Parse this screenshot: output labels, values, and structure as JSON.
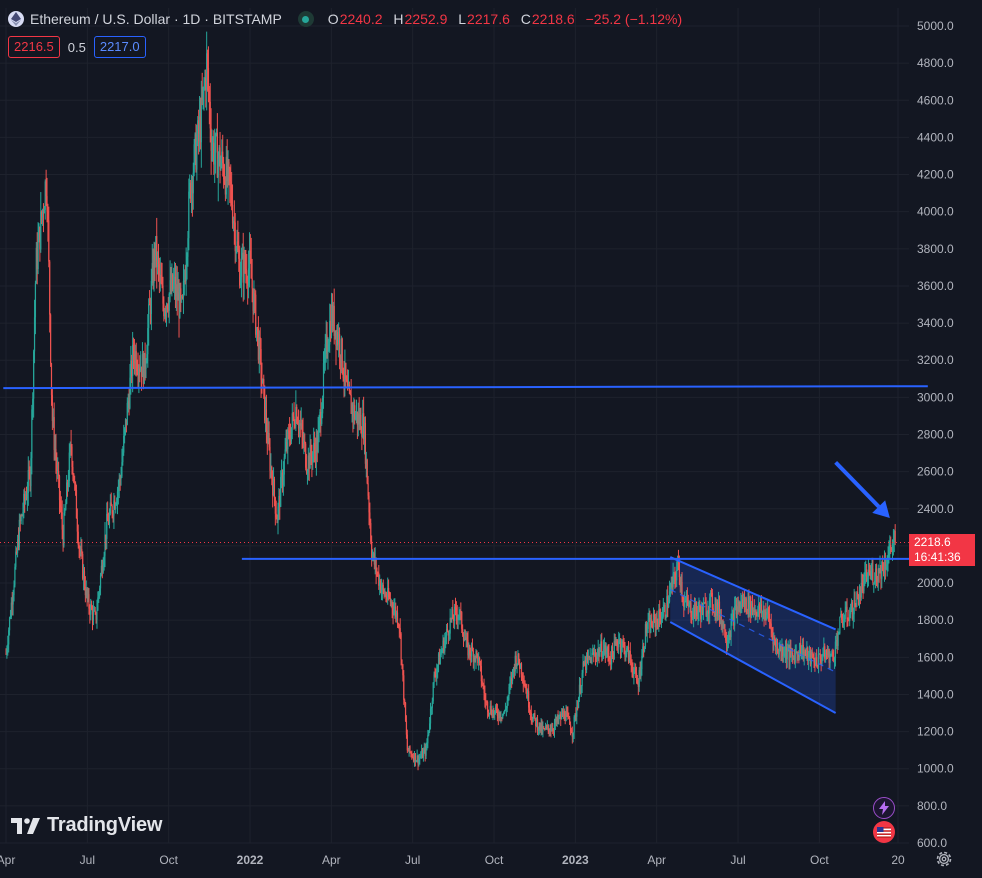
{
  "header": {
    "symbol_title": "Ethereum / U.S. Dollar · 1D · BITSTAMP",
    "ohlc": {
      "open_label": "O",
      "open": "2240.2",
      "high_label": "H",
      "high": "2252.9",
      "low_label": "L",
      "low": "2217.6",
      "close_label": "C",
      "close": "2218.6",
      "change": "−25.2 (−1.12%)"
    },
    "bid": "2216.5",
    "spread": "0.5",
    "ask": "2217.0"
  },
  "price_tag": {
    "price": "2218.6",
    "countdown": "16:41:36"
  },
  "brand": {
    "name": "TradingView"
  },
  "icons": {
    "logo": "ethereum-icon",
    "status": "market-open-icon",
    "alert": "flash-icon",
    "region": "us-flag-icon",
    "settings": "gear-icon"
  },
  "colors": {
    "background": "#131722",
    "up": "#26a69a",
    "down": "#ef5350",
    "drawing": "#2962ff",
    "text": "#d1d4dc"
  },
  "chart_data": {
    "type": "candlestick",
    "timeframe": "1D",
    "y_ticks": [
      "5000.0",
      "4800.0",
      "4600.0",
      "4400.0",
      "4200.0",
      "4000.0",
      "3800.0",
      "3600.0",
      "3400.0",
      "3200.0",
      "3000.0",
      "2800.0",
      "2600.0",
      "2400.0",
      "2200.0",
      "2000.0",
      "1800.0",
      "1600.0",
      "1400.0",
      "1200.0",
      "1000.0",
      "800.0",
      "600.0"
    ],
    "ylim": [
      600,
      5000
    ],
    "x_ticks": [
      {
        "label": "Apr",
        "month": 0,
        "bold": false
      },
      {
        "label": "Jul",
        "month": 3,
        "bold": false
      },
      {
        "label": "Oct",
        "month": 6,
        "bold": false
      },
      {
        "label": "2022",
        "month": 9,
        "bold": true
      },
      {
        "label": "Apr",
        "month": 12,
        "bold": false
      },
      {
        "label": "Jul",
        "month": 15,
        "bold": false
      },
      {
        "label": "Oct",
        "month": 18,
        "bold": false
      },
      {
        "label": "2023",
        "month": 21,
        "bold": true
      },
      {
        "label": "Apr",
        "month": 24,
        "bold": false
      },
      {
        "label": "Jul",
        "month": 27,
        "bold": false
      },
      {
        "label": "Oct",
        "month": 30,
        "bold": false
      },
      {
        "label": "20",
        "month": 32.9,
        "bold": false
      }
    ],
    "xlim_months": [
      -0.1,
      34.0
    ],
    "price_path": [
      [
        0.0,
        1620
      ],
      [
        0.5,
        2300
      ],
      [
        0.9,
        2600
      ],
      [
        1.1,
        3700
      ],
      [
        1.5,
        4200
      ],
      [
        1.7,
        2900
      ],
      [
        2.1,
        2250
      ],
      [
        2.4,
        2750
      ],
      [
        2.7,
        2200
      ],
      [
        3.0,
        1900
      ],
      [
        3.3,
        1800
      ],
      [
        3.7,
        2300
      ],
      [
        4.2,
        2550
      ],
      [
        4.7,
        3250
      ],
      [
        5.1,
        3150
      ],
      [
        5.5,
        3800
      ],
      [
        5.8,
        3500
      ],
      [
        6.2,
        3600
      ],
      [
        6.5,
        3450
      ],
      [
        6.8,
        4150
      ],
      [
        7.2,
        4500
      ],
      [
        7.4,
        4800
      ],
      [
        7.6,
        4350
      ],
      [
        8.0,
        4250
      ],
      [
        8.3,
        4100
      ],
      [
        8.6,
        3700
      ],
      [
        9.0,
        3700
      ],
      [
        9.3,
        3300
      ],
      [
        9.7,
        2700
      ],
      [
        10.0,
        2350
      ],
      [
        10.3,
        2700
      ],
      [
        10.7,
        2950
      ],
      [
        11.1,
        2650
      ],
      [
        11.5,
        2750
      ],
      [
        11.8,
        3250
      ],
      [
        12.0,
        3450
      ],
      [
        12.3,
        3300
      ],
      [
        12.6,
        3000
      ],
      [
        12.9,
        2900
      ],
      [
        13.2,
        2850
      ],
      [
        13.5,
        2150
      ],
      [
        13.9,
        1950
      ],
      [
        14.2,
        1900
      ],
      [
        14.5,
        1800
      ],
      [
        14.8,
        1100
      ],
      [
        15.2,
        1050
      ],
      [
        15.5,
        1100
      ],
      [
        15.8,
        1500
      ],
      [
        16.2,
        1700
      ],
      [
        16.4,
        1800
      ],
      [
        16.7,
        1850
      ],
      [
        17.0,
        1650
      ],
      [
        17.4,
        1600
      ],
      [
        17.7,
        1350
      ],
      [
        18.0,
        1300
      ],
      [
        18.4,
        1300
      ],
      [
        18.8,
        1600
      ],
      [
        19.0,
        1550
      ],
      [
        19.4,
        1280
      ],
      [
        19.8,
        1200
      ],
      [
        20.2,
        1230
      ],
      [
        20.6,
        1300
      ],
      [
        20.9,
        1200
      ],
      [
        21.3,
        1550
      ],
      [
        21.6,
        1600
      ],
      [
        22.0,
        1650
      ],
      [
        22.3,
        1600
      ],
      [
        22.6,
        1700
      ],
      [
        23.0,
        1600
      ],
      [
        23.3,
        1450
      ],
      [
        23.6,
        1750
      ],
      [
        24.0,
        1800
      ],
      [
        24.3,
        1850
      ],
      [
        24.6,
        2000
      ],
      [
        24.8,
        2100
      ],
      [
        25.0,
        1900
      ],
      [
        25.3,
        1850
      ],
      [
        25.7,
        1850
      ],
      [
        26.0,
        1900
      ],
      [
        26.3,
        1850
      ],
      [
        26.6,
        1700
      ],
      [
        26.9,
        1850
      ],
      [
        27.2,
        1900
      ],
      [
        27.5,
        1870
      ],
      [
        27.8,
        1850
      ],
      [
        28.1,
        1830
      ],
      [
        28.4,
        1650
      ],
      [
        28.7,
        1640
      ],
      [
        29.0,
        1600
      ],
      [
        29.3,
        1650
      ],
      [
        29.6,
        1600
      ],
      [
        29.9,
        1580
      ],
      [
        30.2,
        1620
      ],
      [
        30.5,
        1600
      ],
      [
        30.8,
        1800
      ],
      [
        31.2,
        1850
      ],
      [
        31.5,
        1950
      ],
      [
        31.8,
        2050
      ],
      [
        32.1,
        2050
      ],
      [
        32.4,
        2100
      ],
      [
        32.8,
        2250
      ]
    ],
    "last_price": 2218.6,
    "drawings": {
      "horizontal_lines": [
        {
          "x0": -0.1,
          "x1": 34.0,
          "y0": 3050,
          "y1": 3060
        },
        {
          "x0": 8.7,
          "x1": 34.0,
          "y0": 2130,
          "y1": 2130
        }
      ],
      "channel": {
        "upper": [
          [
            24.5,
            2140
          ],
          [
            30.6,
            1750
          ]
        ],
        "lower": [
          [
            24.5,
            1790
          ],
          [
            30.6,
            1300
          ]
        ],
        "mid": [
          [
            24.5,
            1965
          ],
          [
            30.6,
            1520
          ]
        ]
      },
      "arrow": {
        "from": [
          30.6,
          2650
        ],
        "to": [
          32.6,
          2350
        ]
      }
    }
  }
}
